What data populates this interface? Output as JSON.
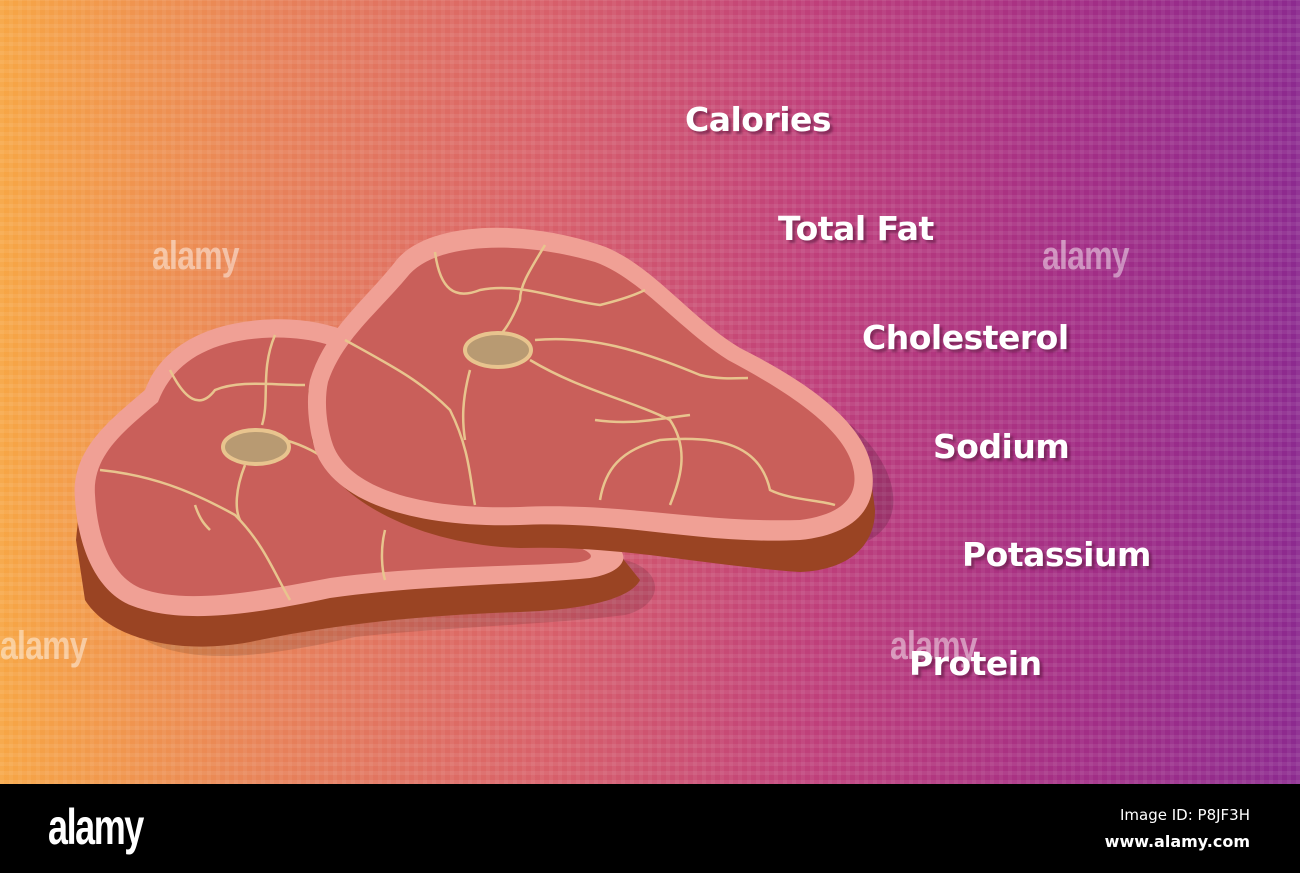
{
  "labels": [
    "Calories",
    "Total Fat",
    "Cholesterol",
    "Sodium",
    "Potassium",
    "Protein"
  ],
  "watermark": "alamy",
  "footer": {
    "logo": "alamy",
    "image_id": "Image ID: P8JF3H",
    "site": "www.alamy.com"
  },
  "colors": {
    "meat": "#c95f5a",
    "rim": "#f0a095",
    "side": "#9a4423",
    "fat_lines": "#e8c48e",
    "bone": "#b89a72",
    "gradient_left": "#f7a645",
    "gradient_right": "#8c2a8f"
  }
}
